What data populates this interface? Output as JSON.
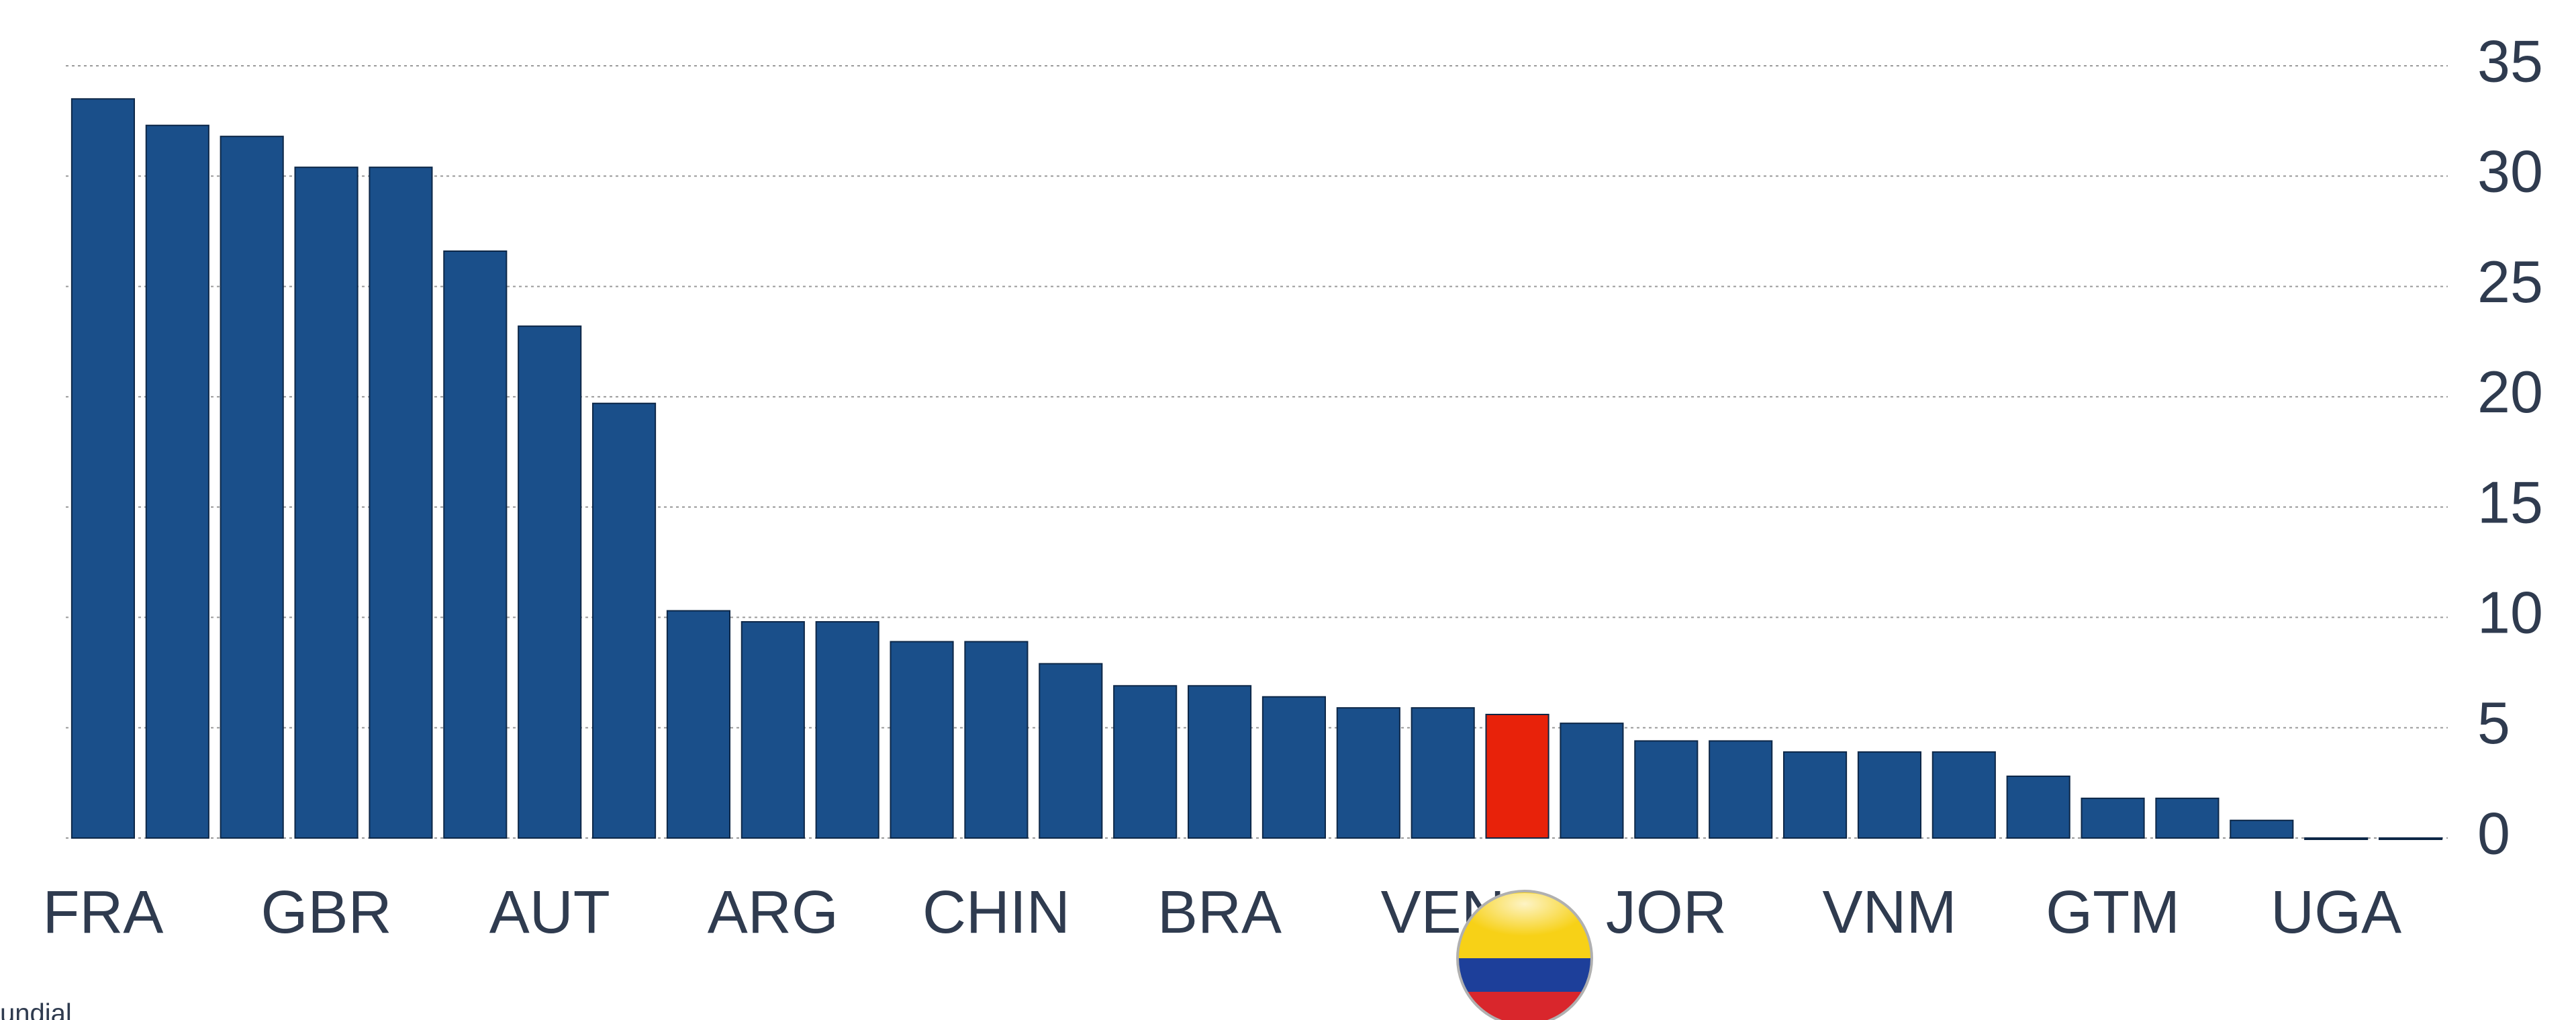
{
  "chart_data": {
    "type": "bar",
    "categories": [
      "FRA",
      null,
      null,
      "GBR",
      null,
      null,
      "AUT",
      null,
      null,
      "ARG",
      null,
      null,
      "CHIN",
      null,
      null,
      "BRA",
      null,
      null,
      "VEN",
      null,
      null,
      "JOR",
      null,
      null,
      "VNM",
      null,
      null,
      "GTM",
      null,
      null,
      "UGA",
      null
    ],
    "values": [
      33.5,
      32.3,
      31.8,
      30.4,
      30.4,
      26.6,
      23.2,
      19.7,
      10.3,
      9.8,
      9.8,
      8.9,
      8.9,
      7.9,
      6.9,
      6.9,
      6.4,
      5.9,
      5.9,
      5.6,
      5.2,
      4.4,
      4.4,
      3.9,
      3.9,
      3.9,
      2.8,
      1.8,
      1.8,
      0.8,
      0,
      0
    ],
    "colors": [
      "#1a4f8a",
      "#1a4f8a",
      "#1a4f8a",
      "#1a4f8a",
      "#1a4f8a",
      "#1a4f8a",
      "#1a4f8a",
      "#1a4f8a",
      "#1a4f8a",
      "#1a4f8a",
      "#1a4f8a",
      "#1a4f8a",
      "#1a4f8a",
      "#1a4f8a",
      "#1a4f8a",
      "#1a4f8a",
      "#1a4f8a",
      "#1a4f8a",
      "#1a4f8a",
      "#e8220a",
      "#1a4f8a",
      "#1a4f8a",
      "#1a4f8a",
      "#1a4f8a",
      "#1a4f8a",
      "#1a4f8a",
      "#1a4f8a",
      "#1a4f8a",
      "#1a4f8a",
      "#1a4f8a",
      "#1a4f8a",
      "#1a4f8a"
    ],
    "ylim": [
      0,
      35
    ],
    "yticks": [
      0,
      5,
      10,
      15,
      20,
      25,
      30,
      35
    ],
    "grid": true,
    "source": "undial"
  }
}
